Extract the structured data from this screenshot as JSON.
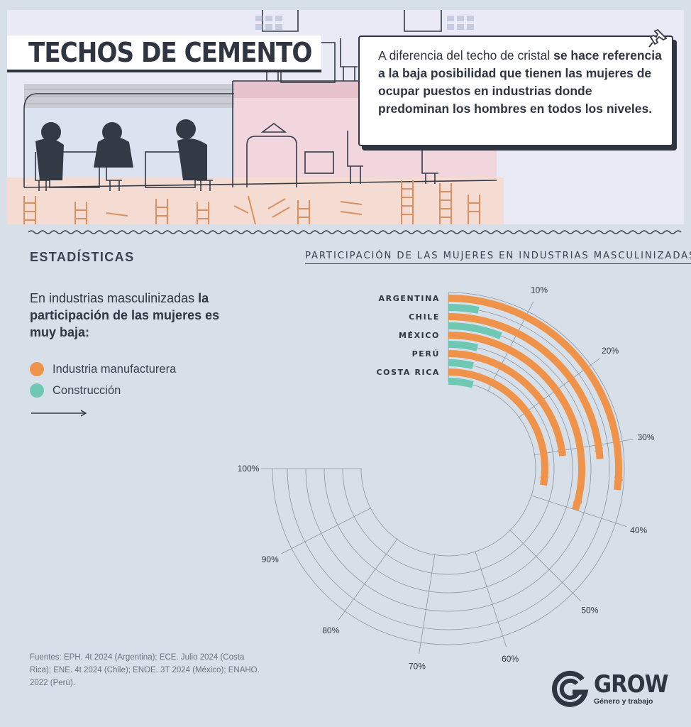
{
  "header": {
    "title": "TECHOS DE CEMENTO",
    "callout_pre": "A diferencia del techo de cristal ",
    "callout_bold": "se hace referencia a la baja posibilidad que tienen las mujeres de ocupar puestos en industrias donde predominan los hombres en todos los niveles."
  },
  "stats": {
    "heading": "ESTADÍSTICAS",
    "intro_pre": "En industrias masculinizadas ",
    "intro_bold": "la participación de las mujeres es muy baja:"
  },
  "legend": [
    {
      "label": "Industria manufacturera",
      "color": "#f0934a"
    },
    {
      "label": "Construcción",
      "color": "#6fc8b4"
    }
  ],
  "chart_data": {
    "type": "radial-bar",
    "title": "PARTICIPACIÓN DE LAS MUJERES EN INDUSTRIAS MASCULINIZADAS:",
    "categories": [
      "ARGENTINA",
      "CHILE",
      "MÉXICO",
      "PERÚ",
      "COSTA RICA"
    ],
    "series": [
      {
        "name": "Industria manufacturera",
        "color": "#f0934a",
        "values": [
          36,
          32,
          40,
          31,
          37
        ]
      },
      {
        "name": "Construcción",
        "color": "#6fc8b4",
        "values": [
          4,
          8,
          5,
          5,
          6
        ]
      }
    ],
    "axis_range": [
      0,
      100
    ],
    "ticks": [
      "10%",
      "20%",
      "30%",
      "40%",
      "50%",
      "60%",
      "70%",
      "80%",
      "90%",
      "100%"
    ]
  },
  "sources": "Fuentes: EPH. 4t 2024 (Argentina); ECE. Julio 2024 (Costa Rica);  ENE. 4t 2024 (Chile); ENOE. 3T 2024 (México); ENAHO. 2022 (Perú).",
  "logo": {
    "name": "GROW",
    "subtitle": "Género y trabajo"
  }
}
